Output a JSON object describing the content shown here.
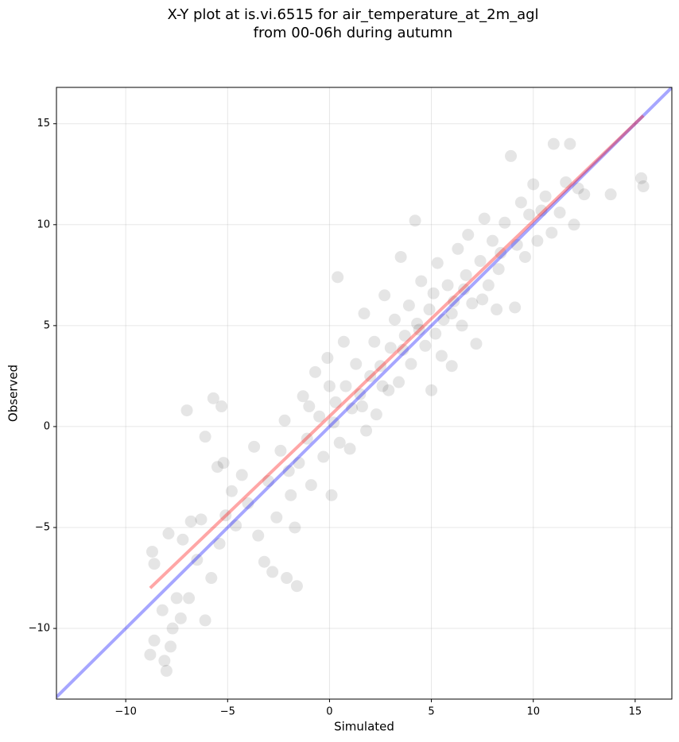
{
  "chart_data": {
    "type": "scatter",
    "title": [
      "X-Y plot at is.vi.6515 for air_temperature_at_2m_agl",
      "from 00-06h during autumn"
    ],
    "x_label": "Simulated",
    "y_label": "Observed",
    "xlim": [
      -13.4,
      16.8
    ],
    "ylim": [
      -13.5,
      16.8
    ],
    "xticks": [
      {
        "value": -10,
        "label": "−10"
      },
      {
        "value": -5,
        "label": "−5"
      },
      0,
      5,
      10,
      15
    ],
    "yticks": [
      {
        "value": -10,
        "label": "−10"
      },
      {
        "value": -5,
        "label": "−5"
      },
      0,
      5,
      10,
      15
    ],
    "grid": true,
    "series": [
      {
        "color": "#000000",
        "x": [
          -8.8,
          -8.0,
          -8.6,
          -8.1,
          -7.8,
          -7.7,
          -7.5,
          -7.3,
          -6.9,
          -8.2,
          -8.7,
          -8.6,
          -7.9,
          -7.2,
          -6.8,
          -6.3,
          -6.5,
          -6.1,
          -5.8,
          -5.4,
          -5.1,
          -4.8,
          -5.2,
          -5.5,
          -7.0,
          -6.1,
          -5.7,
          -5.3,
          -4.6,
          -4.3,
          -4.0,
          -3.7,
          -3.5,
          -3.2,
          -2.8,
          -2.1,
          -1.6,
          -3.0,
          -2.6,
          -2.4,
          -2.2,
          -1.9,
          -1.7,
          -1.5,
          -1.3,
          -1.1,
          -0.9,
          -0.7,
          -0.5,
          -0.3,
          -0.1,
          0.1,
          0.3,
          0.4,
          0.5,
          0.7,
          0.8,
          1.0,
          1.1,
          1.3,
          1.5,
          1.7,
          1.8,
          2.0,
          2.2,
          2.3,
          2.5,
          2.7,
          2.9,
          3.0,
          3.2,
          3.4,
          3.5,
          3.7,
          3.9,
          4.0,
          4.2,
          4.3,
          4.5,
          4.7,
          4.9,
          5.0,
          5.1,
          5.3,
          5.5,
          5.6,
          5.8,
          6.0,
          6.1,
          6.3,
          6.5,
          6.7,
          6.8,
          7.0,
          7.2,
          7.4,
          7.6,
          7.8,
          8.0,
          8.2,
          8.4,
          8.6,
          8.9,
          9.1,
          9.2,
          9.4,
          9.6,
          9.8,
          10.0,
          10.2,
          10.4,
          10.6,
          10.9,
          11.0,
          11.3,
          11.6,
          11.8,
          12.0,
          12.2,
          12.5,
          13.8,
          15.3,
          15.4,
          0.2,
          1.6,
          3.6,
          5.2,
          6.6,
          2.6,
          4.4,
          -1.0,
          0.0,
          6.0,
          7.5,
          8.3,
          -2.0
        ],
        "values": [
          -11.3,
          -12.1,
          -10.6,
          -11.6,
          -10.9,
          -10.0,
          -8.5,
          -9.5,
          -8.5,
          -9.1,
          -6.2,
          -6.8,
          -5.3,
          -5.6,
          -4.7,
          -4.6,
          -6.6,
          -9.6,
          -7.5,
          -5.8,
          -4.4,
          -3.2,
          -1.8,
          -2.0,
          0.8,
          -0.5,
          1.4,
          1.0,
          -4.9,
          -2.4,
          -3.8,
          -1.0,
          -5.4,
          -6.7,
          -7.2,
          -7.5,
          -7.9,
          -2.7,
          -4.5,
          -1.2,
          0.3,
          -3.4,
          -5.0,
          -1.8,
          1.5,
          -0.6,
          -2.9,
          2.7,
          0.5,
          -1.5,
          3.4,
          -3.4,
          1.2,
          7.4,
          -0.8,
          4.2,
          2.0,
          -1.1,
          0.9,
          3.1,
          1.6,
          5.6,
          -0.2,
          2.5,
          4.2,
          0.6,
          3.0,
          6.5,
          1.8,
          3.9,
          5.3,
          2.2,
          8.4,
          4.5,
          6.0,
          3.1,
          10.2,
          5.1,
          7.2,
          4.0,
          5.8,
          1.8,
          6.6,
          8.1,
          3.5,
          5.3,
          7.0,
          3.0,
          6.2,
          8.8,
          5.0,
          7.5,
          9.5,
          6.1,
          4.1,
          8.2,
          10.3,
          7.0,
          9.2,
          5.8,
          8.6,
          10.1,
          13.4,
          5.9,
          9.0,
          11.1,
          8.4,
          10.5,
          12.0,
          9.2,
          10.7,
          11.4,
          9.6,
          14.0,
          10.6,
          12.1,
          14.0,
          10.0,
          11.8,
          11.5,
          11.5,
          12.3,
          11.9,
          0.2,
          1.0,
          3.8,
          4.6,
          6.8,
          2.0,
          4.8,
          1.0,
          2.0,
          5.6,
          6.3,
          7.8,
          -2.2
        ]
      }
    ],
    "lines": [
      {
        "color": "#0000ff",
        "x": [
          -13.4,
          16.8
        ],
        "values": [
          -13.4,
          16.8
        ]
      },
      {
        "color": "#ff0000",
        "x": [
          -8.8,
          15.4
        ],
        "values": [
          -8.0,
          15.4
        ]
      }
    ]
  }
}
